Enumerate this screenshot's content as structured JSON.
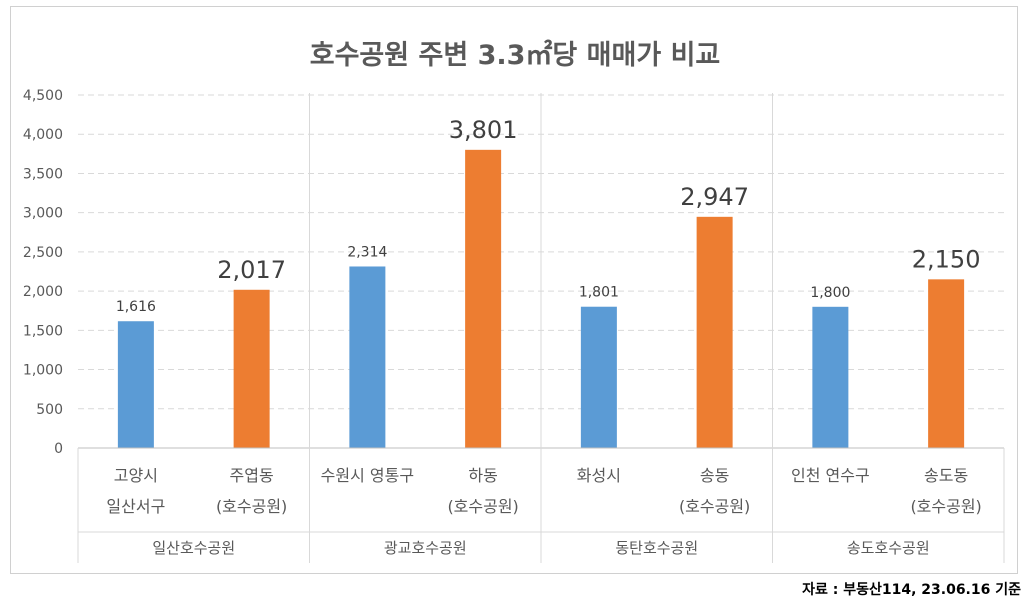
{
  "chart_data": {
    "type": "bar",
    "title": "호수공원 주변 3.3㎡당 매매가 비교",
    "ylim": [
      0,
      4500
    ],
    "yticks": [
      "0",
      "500",
      "1,000",
      "1,500",
      "2,000",
      "2,500",
      "3,000",
      "3,500",
      "4,000",
      "4,500"
    ],
    "ytick_values": [
      0,
      500,
      1000,
      1500,
      2000,
      2500,
      3000,
      3500,
      4000,
      4500
    ],
    "grid": true,
    "colors": {
      "comparison": "#5b9bd5",
      "lakepark": "#ed7d31"
    },
    "bars": [
      {
        "label_lines": [
          "고양시",
          "일산서구"
        ],
        "value": 1616,
        "value_label": "1,616",
        "kind": "comparison"
      },
      {
        "label_lines": [
          "주엽동",
          "(호수공원)"
        ],
        "value": 2017,
        "value_label": "2,017",
        "kind": "lakepark"
      },
      {
        "label_lines": [
          "수원시 영통구"
        ],
        "value": 2314,
        "value_label": "2,314",
        "kind": "comparison"
      },
      {
        "label_lines": [
          "하동",
          "(호수공원)"
        ],
        "value": 3801,
        "value_label": "3,801",
        "kind": "lakepark"
      },
      {
        "label_lines": [
          "화성시"
        ],
        "value": 1801,
        "value_label": "1,801",
        "kind": "comparison"
      },
      {
        "label_lines": [
          "송동",
          "(호수공원)"
        ],
        "value": 2947,
        "value_label": "2,947",
        "kind": "lakepark"
      },
      {
        "label_lines": [
          "인천 연수구"
        ],
        "value": 1800,
        "value_label": "1,800",
        "kind": "comparison"
      },
      {
        "label_lines": [
          "송도동",
          "(호수공원)"
        ],
        "value": 2150,
        "value_label": "2,150",
        "kind": "lakepark"
      }
    ],
    "groups": [
      "일산호수공원",
      "광교호수공원",
      "동탄호수공원",
      "송도호수공원"
    ]
  },
  "source_note": "자료 : 부동산114, 23.06.16 기준"
}
